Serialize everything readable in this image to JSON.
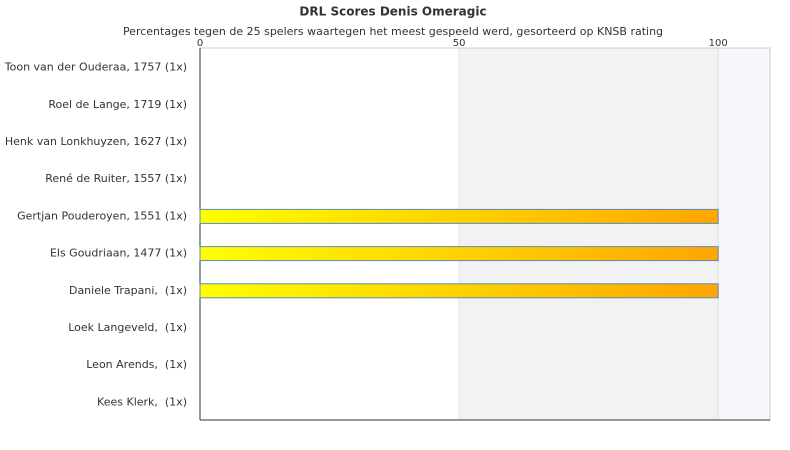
{
  "chart_data": {
    "type": "hbar",
    "title": "DRL Scores Denis Omeragic",
    "subtitle": "Percentages tegen de 25 spelers waartegen het meest gespeeld werd, gesorteerd op KNSB rating",
    "categories": [
      "Toon van der Ouderaa, 1757 (1x)",
      "Roel de Lange, 1719 (1x)",
      "Henk van Lonkhuyzen, 1627 (1x)",
      "René de Ruiter, 1557 (1x)",
      "Gertjan Pouderoyen, 1551 (1x)",
      "Els Goudriaan, 1477 (1x)",
      "Daniele Trapani,  (1x)",
      "Loek Langeveld,  (1x)",
      "Leon Arends,  (1x)",
      "Kees Klerk,  (1x)"
    ],
    "values": [
      0,
      0,
      0,
      0,
      100,
      100,
      100,
      0,
      0,
      0
    ],
    "colors": [
      "#ffff00",
      "#ffa500"
    ],
    "xlim": [
      0,
      110
    ],
    "xticks": [
      0,
      50,
      100
    ],
    "grid": true
  }
}
